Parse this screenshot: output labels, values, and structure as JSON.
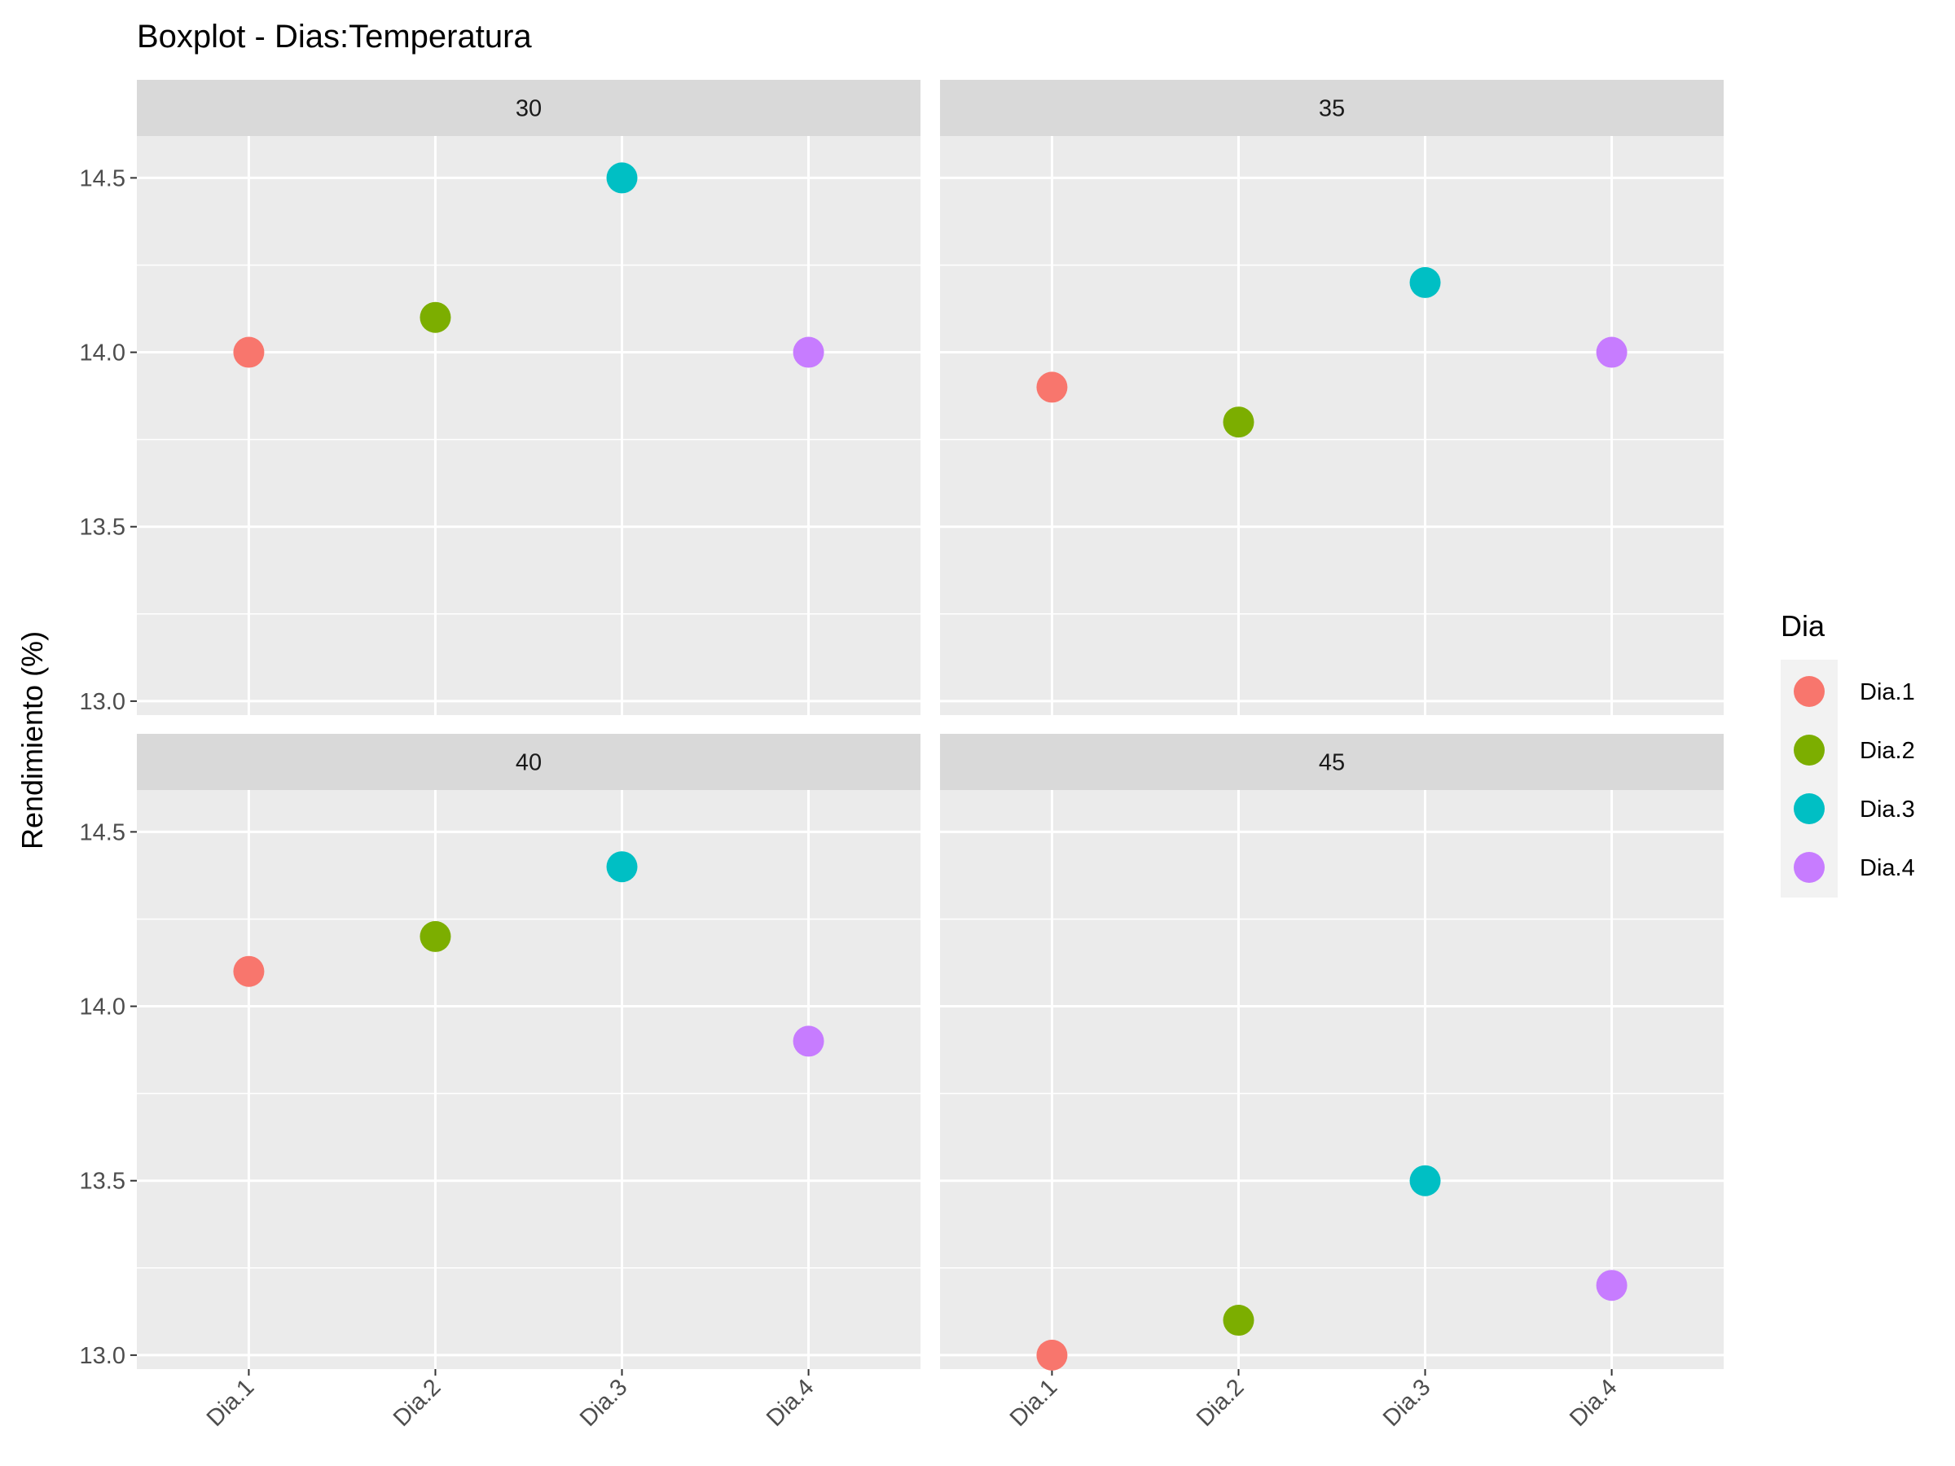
{
  "chart_data": {
    "type": "scatter",
    "title": "Boxplot - Dias:Temperatura",
    "xlabel": "",
    "ylabel": "Rendimiento (%)",
    "categories": [
      "Dia.1",
      "Dia.2",
      "Dia.3",
      "Dia.4"
    ],
    "ylim": [
      12.96,
      14.62
    ],
    "yticks": [
      "13.0",
      "13.5",
      "14.0",
      "14.5"
    ],
    "grid": true,
    "legend": {
      "title": "Dia",
      "placement": "right",
      "items": [
        {
          "label": "Dia.1",
          "color": "#F8766D"
        },
        {
          "label": "Dia.2",
          "color": "#7CAE00"
        },
        {
          "label": "Dia.3",
          "color": "#00BFC4"
        },
        {
          "label": "Dia.4",
          "color": "#C77CFF"
        }
      ]
    },
    "facets": [
      {
        "label": "30",
        "values": [
          14.0,
          14.1,
          14.5,
          14.0
        ]
      },
      {
        "label": "35",
        "values": [
          13.9,
          13.8,
          14.2,
          14.0
        ]
      },
      {
        "label": "40",
        "values": [
          14.1,
          14.2,
          14.4,
          13.9
        ]
      },
      {
        "label": "45",
        "values": [
          13.0,
          13.1,
          13.5,
          13.2
        ]
      }
    ]
  }
}
